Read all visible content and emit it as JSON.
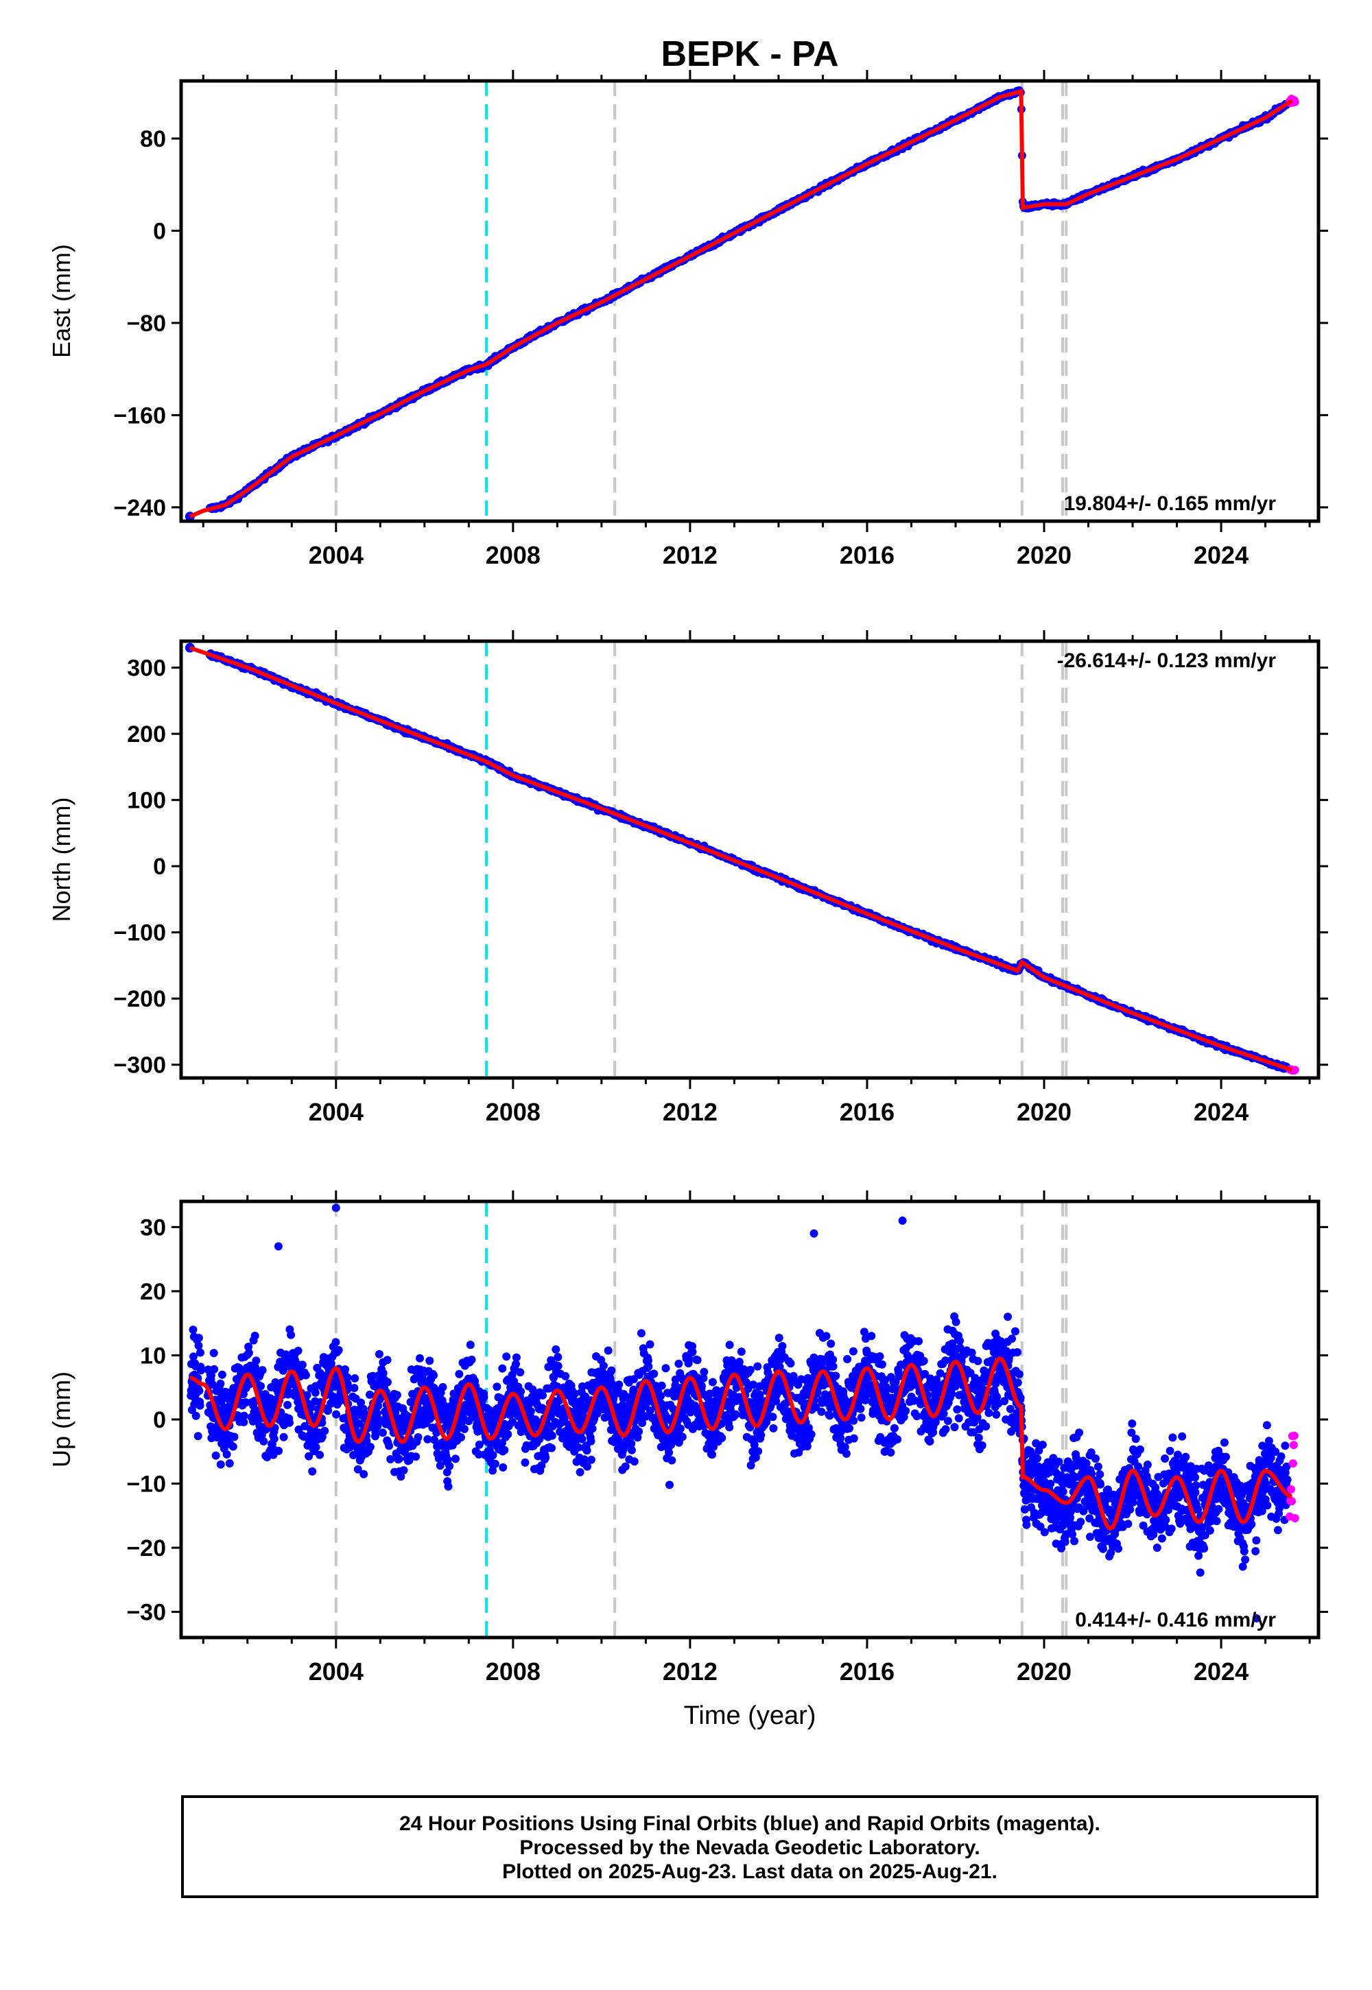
{
  "chart_data": {
    "type": "scatter",
    "title": "BEPK - PA",
    "xlabel": "Time (year)",
    "xlim": [
      2000.5,
      2026.2
    ],
    "xticks": [
      2004,
      2008,
      2012,
      2016,
      2020,
      2024
    ],
    "event_lines": {
      "gray": [
        2004.0,
        2010.3,
        2019.5,
        2020.42,
        2020.5
      ],
      "cyan": [
        2007.4
      ]
    },
    "colors": {
      "final_orbits": "#0000ff",
      "rapid_orbits": "#ff00ff",
      "model": "#ff0000",
      "gray_lines": "#c8c8c8",
      "cyan_line": "#00e5e5"
    },
    "panels": [
      {
        "ylabel": "East (mm)",
        "ylim": [
          -252,
          130
        ],
        "yticks": [
          -240,
          -160,
          -80,
          0,
          80
        ],
        "rate_label": "19.804+/- 0.165 mm/yr",
        "rate_position": "bottom-right",
        "series": [
          {
            "x": [
              2000.7,
              2001.0,
              2001.5,
              2002.0,
              2003.0,
              2004.0,
              2005.0,
              2006.0,
              2007.0,
              2007.4,
              2008.0,
              2009.0,
              2010.0,
              2011.0,
              2012.0,
              2013.0,
              2014.0,
              2015.0,
              2016.0,
              2017.0,
              2018.0,
              2019.0,
              2019.48,
              2019.52,
              2020.0,
              2020.5,
              2021.0,
              2022.0,
              2023.0,
              2024.0,
              2025.0,
              2025.6
            ],
            "y": [
              -248,
              -243,
              -238,
              -225,
              -196,
              -178,
              -159,
              -139,
              -121,
              -116,
              -101,
              -80,
              -62,
              -42,
              -22,
              -2,
              18,
              38,
              58,
              77,
              96,
              116,
              121,
              20,
              23,
              23,
              32,
              47,
              62,
              80,
              98,
              113
            ]
          }
        ]
      },
      {
        "ylabel": "North (mm)",
        "ylim": [
          -320,
          340
        ],
        "yticks": [
          -300,
          -200,
          -100,
          0,
          100,
          200,
          300
        ],
        "rate_label": "-26.614+/- 0.123 mm/yr",
        "rate_position": "top-right",
        "series": [
          {
            "x": [
              2000.7,
              2002.0,
              2004.0,
              2006.0,
              2007.4,
              2008.0,
              2010.0,
              2012.0,
              2014.0,
              2016.0,
              2018.0,
              2019.4,
              2019.5,
              2020.0,
              2022.0,
              2024.0,
              2025.6
            ],
            "y": [
              330,
              300,
              246,
              194,
              158,
              137,
              87,
              35,
              -18,
              -72,
              -124,
              -158,
              -145,
              -168,
              -222,
              -272,
              -308
            ]
          }
        ]
      },
      {
        "ylabel": "Up (mm)",
        "ylim": [
          -34,
          34
        ],
        "yticks": [
          -30,
          -20,
          -10,
          0,
          10,
          20,
          30
        ],
        "rate_label": "0.414+/- 0.416 mm/yr",
        "rate_position": "bottom-right",
        "model": {
          "x": [
            2000.7,
            2001.0,
            2001.5,
            2002.0,
            2002.5,
            2003.0,
            2003.5,
            2004.0,
            2004.5,
            2005.0,
            2005.5,
            2006.0,
            2006.5,
            2007.0,
            2007.5,
            2008.0,
            2008.5,
            2009.0,
            2009.5,
            2010.0,
            2010.5,
            2011.0,
            2011.5,
            2012.0,
            2012.5,
            2013.0,
            2013.5,
            2014.0,
            2014.5,
            2015.0,
            2015.5,
            2016.0,
            2016.5,
            2017.0,
            2017.5,
            2018.0,
            2018.5,
            2019.0,
            2019.48,
            2019.52,
            2020.0,
            2020.5,
            2021.0,
            2021.5,
            2022.0,
            2022.5,
            2023.0,
            2023.5,
            2024.0,
            2024.5,
            2025.0,
            2025.6
          ],
          "y": [
            6.5,
            5.5,
            -1.5,
            7,
            -1,
            7.5,
            -1,
            8,
            -3.5,
            4.5,
            -3.5,
            5,
            -3,
            5.5,
            -3,
            4,
            -2.5,
            4.5,
            -2,
            5,
            -2.5,
            6,
            -2,
            6.5,
            -1.5,
            7,
            -1,
            7.5,
            -0.5,
            7.5,
            0,
            8,
            0,
            8.5,
            0.5,
            9,
            1,
            9.5,
            2,
            -9,
            -11,
            -13,
            -9,
            -17,
            -8,
            -15,
            -9,
            -16,
            -8,
            -16,
            -8,
            -12
          ]
        },
        "scatter": {
          "center_offset": 0,
          "spread_mm": 5.5
        },
        "outliers": {
          "x": [
            2004.0,
            2002.7,
            2016.8,
            2014.8,
            2024.8
          ],
          "y": [
            33,
            27,
            31,
            29,
            -31
          ]
        },
        "rapid": {
          "x_start": 2025.55,
          "x_end": 2025.68,
          "y_min": -17,
          "y_max": 1
        }
      }
    ]
  },
  "caption": {
    "line1": "24 Hour Positions Using Final Orbits (blue) and Rapid Orbits (magenta).",
    "line2": "Processed by the Nevada Geodetic Laboratory.",
    "line3": "Plotted on 2025-Aug-23. Last data on 2025-Aug-21."
  }
}
